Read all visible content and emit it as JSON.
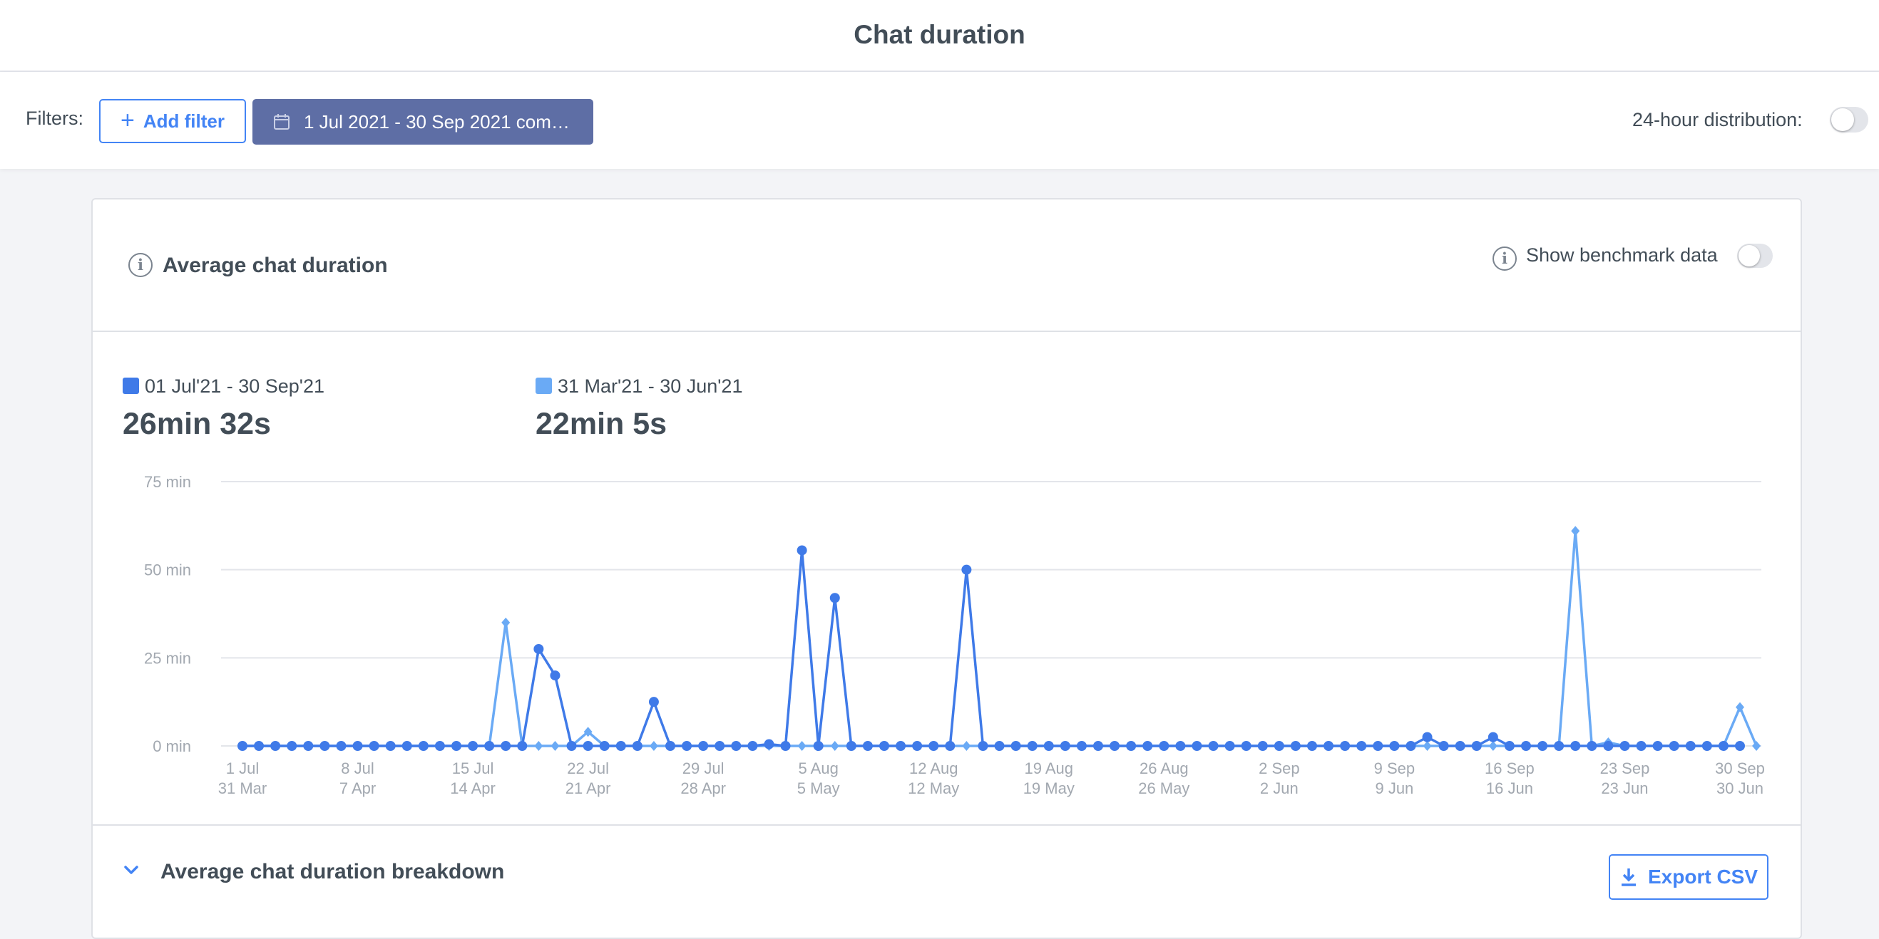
{
  "header": {
    "title": "Chat duration"
  },
  "filters": {
    "label": "Filters:",
    "add_filter_label": "Add filter",
    "date_range_label": "1 Jul 2021 - 30 Sep 2021 comp…",
    "distribution_label": "24-hour distribution:",
    "distribution_on": false
  },
  "card": {
    "title": "Average chat duration",
    "benchmark_label": "Show benchmark data",
    "benchmark_on": false,
    "breakdown_title": "Average chat duration breakdown",
    "export_label": "Export CSV"
  },
  "legend": [
    {
      "label": "01 Jul'21 - 30 Sep'21",
      "value": "26min 32s",
      "color": "#3f7ae8"
    },
    {
      "label": "31 Mar'21 - 30 Jun'21",
      "value": "22min 5s",
      "color": "#6aaaf5"
    }
  ],
  "chart_data": {
    "type": "line",
    "y_ticks": [
      "75 min",
      "50 min",
      "25 min",
      "0 min"
    ],
    "y_tick_values": [
      75,
      50,
      25,
      0
    ],
    "ylim": [
      0,
      75
    ],
    "grid": true,
    "x_ticks": [
      {
        "primary": "1 Jul",
        "secondary": "31 Mar"
      },
      {
        "primary": "8 Jul",
        "secondary": "7 Apr"
      },
      {
        "primary": "15 Jul",
        "secondary": "14 Apr"
      },
      {
        "primary": "22 Jul",
        "secondary": "21 Apr"
      },
      {
        "primary": "29 Jul",
        "secondary": "28 Apr"
      },
      {
        "primary": "5 Aug",
        "secondary": "5 May"
      },
      {
        "primary": "12 Aug",
        "secondary": "12 May"
      },
      {
        "primary": "19 Aug",
        "secondary": "19 May"
      },
      {
        "primary": "26 Aug",
        "secondary": "26 May"
      },
      {
        "primary": "2 Sep",
        "secondary": "2 Jun"
      },
      {
        "primary": "9 Sep",
        "secondary": "9 Jun"
      },
      {
        "primary": "16 Sep",
        "secondary": "16 Jun"
      },
      {
        "primary": "23 Sep",
        "secondary": "23 Jun"
      },
      {
        "primary": "30 Sep",
        "secondary": "30 Jun"
      }
    ],
    "series": [
      {
        "name": "01 Jul'21 - 30 Sep'21",
        "marker": "circle",
        "color": "#3f7ae8",
        "values": [
          0,
          0,
          0,
          0,
          0,
          0,
          0,
          0,
          0,
          0,
          0,
          0,
          0,
          0,
          0,
          0,
          0,
          0,
          27.5,
          20,
          0,
          0,
          0,
          0,
          0,
          12.5,
          0,
          0,
          0,
          0,
          0,
          0,
          0.5,
          0,
          55.5,
          0,
          42,
          0,
          0,
          0,
          0,
          0,
          0,
          0,
          50,
          0,
          0,
          0,
          0,
          0,
          0,
          0,
          0,
          0,
          0,
          0,
          0,
          0,
          0,
          0,
          0,
          0,
          0,
          0,
          0,
          0,
          0,
          0,
          0,
          0,
          0,
          0,
          2.5,
          0,
          0,
          0,
          2.5,
          0,
          0,
          0,
          0,
          0,
          0,
          0,
          0,
          0,
          0,
          0,
          0,
          0,
          0,
          0
        ]
      },
      {
        "name": "31 Mar'21 - 30 Jun'21",
        "marker": "diamond",
        "color": "#6aaaf5",
        "values": [
          0,
          0,
          0,
          0,
          0,
          0,
          0,
          0,
          0,
          0,
          0,
          0,
          0,
          0,
          0,
          0,
          35,
          0,
          0,
          0,
          0,
          4,
          0,
          0,
          0,
          0,
          0,
          0,
          0,
          0,
          0,
          0,
          0,
          0,
          0,
          0,
          0,
          0,
          0,
          0,
          0,
          0,
          0,
          0,
          0,
          0,
          0,
          0,
          0,
          0,
          0,
          0,
          0,
          0,
          0,
          0,
          0,
          0,
          0,
          0,
          0,
          0,
          0,
          0,
          0,
          0,
          0,
          0,
          0,
          0,
          0,
          0,
          0,
          0,
          0,
          0,
          0,
          0,
          0,
          0,
          0,
          61,
          0,
          1,
          0,
          0,
          0,
          0,
          0,
          0,
          0,
          11,
          0
        ]
      }
    ]
  }
}
